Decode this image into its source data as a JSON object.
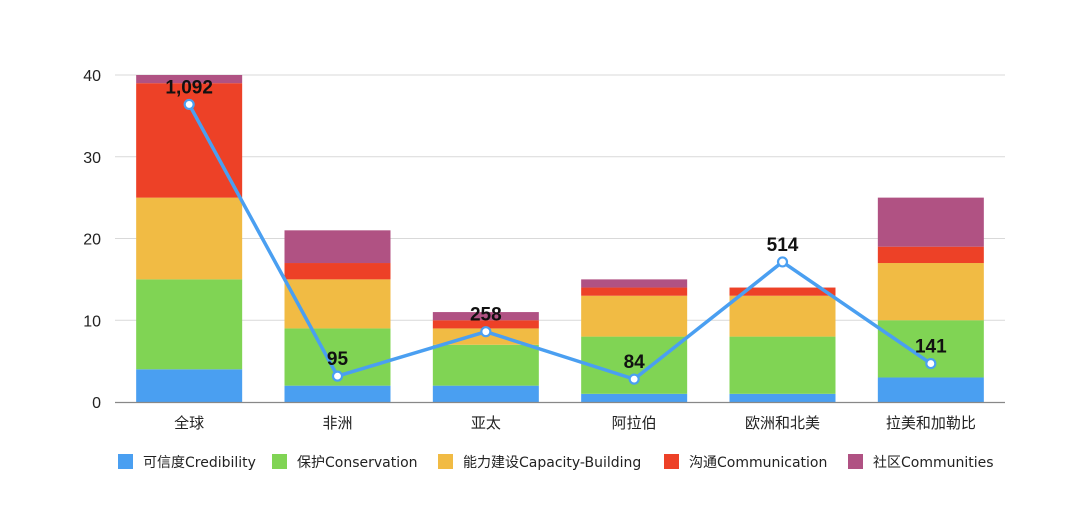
{
  "chart_data": {
    "type": "bar",
    "stacked": true,
    "title": "",
    "xlabel": "",
    "ylabel": "",
    "ylim": [
      0,
      40
    ],
    "yticks": [
      0,
      10,
      20,
      30,
      40
    ],
    "grid": true,
    "legend_position": "bottom",
    "categories": [
      "全球",
      "非洲",
      "亚太",
      "阿拉伯",
      "欧洲和北美",
      "拉美和加勒比"
    ],
    "series": [
      {
        "name": "可信度Credibility",
        "color": "#4a9ff1",
        "values": [
          4,
          2,
          2,
          1,
          1,
          3
        ]
      },
      {
        "name": "保护Conservation",
        "color": "#80d454",
        "values": [
          11,
          7,
          5,
          7,
          7,
          7
        ]
      },
      {
        "name": "能力建设Capacity-Building",
        "color": "#f1bb44",
        "values": [
          10,
          6,
          2,
          5,
          5,
          7
        ]
      },
      {
        "name": "沟通Communication",
        "color": "#ed4127",
        "values": [
          14,
          2,
          1,
          1,
          1,
          2
        ]
      },
      {
        "name": "社区Communities",
        "color": "#b05283",
        "values": [
          1,
          4,
          1,
          1,
          0,
          6
        ]
      }
    ],
    "line": {
      "color": "#4a9ff1",
      "labels": [
        "1,092",
        "95",
        "258",
        "84",
        "514",
        "141"
      ],
      "values": [
        1092,
        95,
        258,
        84,
        514,
        141
      ],
      "scale_max": 1200
    }
  }
}
